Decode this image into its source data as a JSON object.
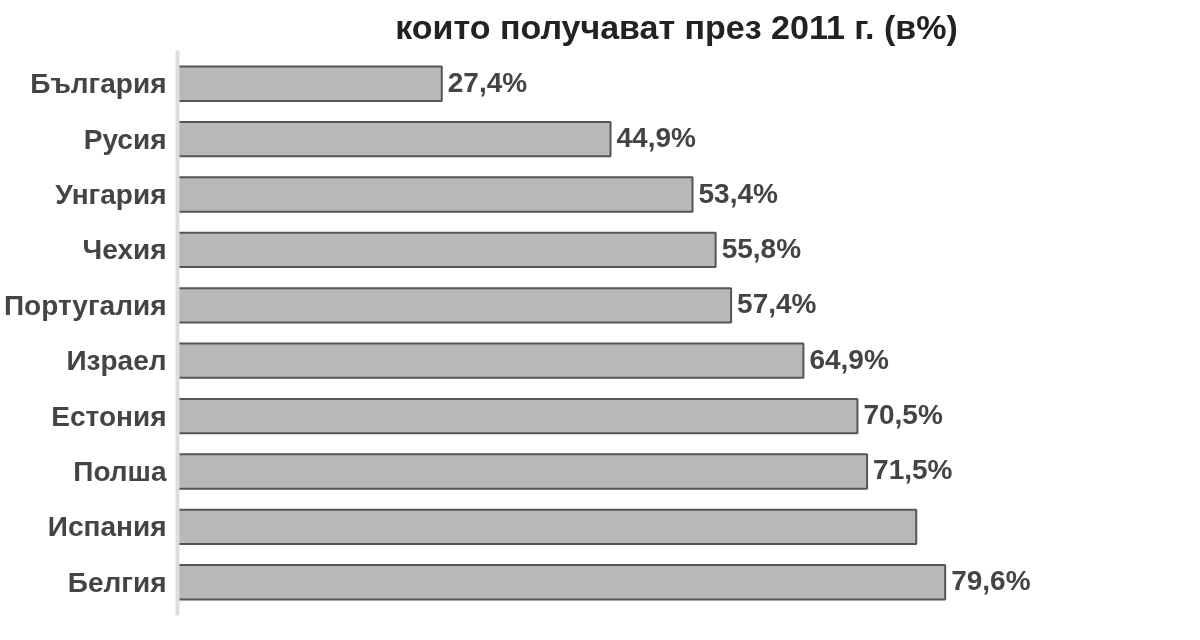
{
  "chart_data": {
    "type": "bar",
    "orientation": "horizontal",
    "title": "които получават през 2011 г. (в%)",
    "categories": [
      "България",
      "Русия",
      "Унгария",
      "Чехия",
      "Португалия",
      "Израел",
      "Естония",
      "Полша",
      "Испания",
      "Белгия"
    ],
    "values": [
      27.4,
      44.9,
      53.4,
      55.8,
      57.4,
      64.9,
      70.5,
      71.5,
      76.6,
      79.6
    ],
    "value_labels": [
      "27,4%",
      "44,9%",
      "53,4%",
      "55,8%",
      "57,4%",
      "64,9%",
      "70,5%",
      "71,5%",
      null,
      "79,6%"
    ],
    "color": "#b8b8b8",
    "grid": false
  }
}
